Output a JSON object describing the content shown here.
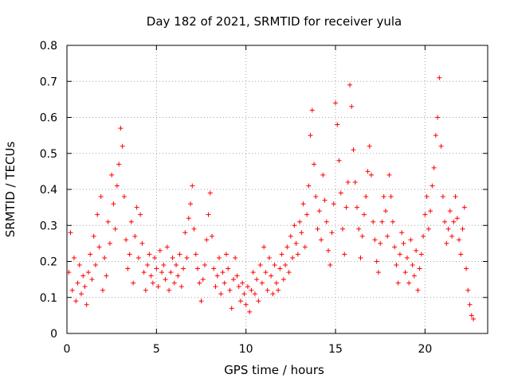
{
  "chart_data": {
    "type": "scatter",
    "title": "Day 182 of 2021, SRMTID for receiver yula",
    "xlabel": "GPS time / hours",
    "ylabel": "SRMTID / TECUs",
    "xlim": [
      0,
      23.5
    ],
    "ylim": [
      0,
      0.8
    ],
    "xticks": [
      0,
      5,
      10,
      15,
      20
    ],
    "xtick_labels": [
      "0",
      "5",
      "10",
      "15",
      "20"
    ],
    "yticks": [
      0,
      0.1,
      0.2,
      0.3,
      0.4,
      0.5,
      0.6,
      0.7,
      0.8
    ],
    "ytick_labels": [
      "0",
      "0.1",
      "0.2",
      "0.3",
      "0.4",
      "0.5",
      "0.6",
      "0.7",
      "0.8"
    ],
    "grid": true,
    "marker": "+",
    "marker_color": "#ff0000",
    "series": [
      {
        "name": "SRMTID",
        "points": [
          [
            0.1,
            0.17
          ],
          [
            0.2,
            0.28
          ],
          [
            0.3,
            0.12
          ],
          [
            0.4,
            0.21
          ],
          [
            0.5,
            0.09
          ],
          [
            0.6,
            0.14
          ],
          [
            0.7,
            0.19
          ],
          [
            0.8,
            0.11
          ],
          [
            0.9,
            0.16
          ],
          [
            1.0,
            0.13
          ],
          [
            1.1,
            0.08
          ],
          [
            1.2,
            0.17
          ],
          [
            1.3,
            0.22
          ],
          [
            1.4,
            0.15
          ],
          [
            1.5,
            0.27
          ],
          [
            1.6,
            0.19
          ],
          [
            1.7,
            0.33
          ],
          [
            1.8,
            0.24
          ],
          [
            1.9,
            0.38
          ],
          [
            2.0,
            0.12
          ],
          [
            2.1,
            0.21
          ],
          [
            2.2,
            0.16
          ],
          [
            2.3,
            0.31
          ],
          [
            2.4,
            0.25
          ],
          [
            2.5,
            0.44
          ],
          [
            2.6,
            0.36
          ],
          [
            2.7,
            0.29
          ],
          [
            2.8,
            0.41
          ],
          [
            2.9,
            0.47
          ],
          [
            3.0,
            0.57
          ],
          [
            3.1,
            0.52
          ],
          [
            3.2,
            0.38
          ],
          [
            3.3,
            0.26
          ],
          [
            3.4,
            0.18
          ],
          [
            3.5,
            0.22
          ],
          [
            3.6,
            0.31
          ],
          [
            3.7,
            0.14
          ],
          [
            3.8,
            0.27
          ],
          [
            3.9,
            0.35
          ],
          [
            4.0,
            0.21
          ],
          [
            4.1,
            0.33
          ],
          [
            4.2,
            0.25
          ],
          [
            4.3,
            0.17
          ],
          [
            4.4,
            0.12
          ],
          [
            4.5,
            0.19
          ],
          [
            4.6,
            0.22
          ],
          [
            4.7,
            0.16
          ],
          [
            4.8,
            0.14
          ],
          [
            4.9,
            0.21
          ],
          [
            5.0,
            0.18
          ],
          [
            5.1,
            0.13
          ],
          [
            5.2,
            0.23
          ],
          [
            5.3,
            0.17
          ],
          [
            5.4,
            0.19
          ],
          [
            5.5,
            0.15
          ],
          [
            5.6,
            0.24
          ],
          [
            5.7,
            0.12
          ],
          [
            5.8,
            0.17
          ],
          [
            5.9,
            0.21
          ],
          [
            6.0,
            0.14
          ],
          [
            6.1,
            0.19
          ],
          [
            6.2,
            0.16
          ],
          [
            6.3,
            0.22
          ],
          [
            6.4,
            0.13
          ],
          [
            6.5,
            0.18
          ],
          [
            6.6,
            0.28
          ],
          [
            6.7,
            0.21
          ],
          [
            6.8,
            0.32
          ],
          [
            6.9,
            0.36
          ],
          [
            7.0,
            0.41
          ],
          [
            7.1,
            0.29
          ],
          [
            7.2,
            0.22
          ],
          [
            7.3,
            0.18
          ],
          [
            7.4,
            0.14
          ],
          [
            7.5,
            0.09
          ],
          [
            7.6,
            0.15
          ],
          [
            7.7,
            0.19
          ],
          [
            7.8,
            0.26
          ],
          [
            7.9,
            0.33
          ],
          [
            8.0,
            0.39
          ],
          [
            8.1,
            0.27
          ],
          [
            8.2,
            0.18
          ],
          [
            8.3,
            0.13
          ],
          [
            8.4,
            0.16
          ],
          [
            8.5,
            0.21
          ],
          [
            8.6,
            0.11
          ],
          [
            8.7,
            0.17
          ],
          [
            8.8,
            0.14
          ],
          [
            8.9,
            0.22
          ],
          [
            9.0,
            0.18
          ],
          [
            9.1,
            0.12
          ],
          [
            9.2,
            0.07
          ],
          [
            9.3,
            0.15
          ],
          [
            9.4,
            0.21
          ],
          [
            9.5,
            0.16
          ],
          [
            9.6,
            0.13
          ],
          [
            9.7,
            0.09
          ],
          [
            9.8,
            0.14
          ],
          [
            9.9,
            0.11
          ],
          [
            10.0,
            0.08
          ],
          [
            10.1,
            0.13
          ],
          [
            10.2,
            0.06
          ],
          [
            10.3,
            0.12
          ],
          [
            10.4,
            0.17
          ],
          [
            10.5,
            0.11
          ],
          [
            10.6,
            0.15
          ],
          [
            10.7,
            0.09
          ],
          [
            10.8,
            0.19
          ],
          [
            10.9,
            0.14
          ],
          [
            11.0,
            0.24
          ],
          [
            11.1,
            0.17
          ],
          [
            11.2,
            0.12
          ],
          [
            11.3,
            0.21
          ],
          [
            11.4,
            0.16
          ],
          [
            11.5,
            0.11
          ],
          [
            11.6,
            0.19
          ],
          [
            11.7,
            0.14
          ],
          [
            11.8,
            0.12
          ],
          [
            11.9,
            0.18
          ],
          [
            12.0,
            0.22
          ],
          [
            12.1,
            0.15
          ],
          [
            12.2,
            0.19
          ],
          [
            12.3,
            0.24
          ],
          [
            12.4,
            0.17
          ],
          [
            12.5,
            0.27
          ],
          [
            12.6,
            0.21
          ],
          [
            12.7,
            0.3
          ],
          [
            12.8,
            0.25
          ],
          [
            12.9,
            0.22
          ],
          [
            13.0,
            0.31
          ],
          [
            13.1,
            0.28
          ],
          [
            13.2,
            0.36
          ],
          [
            13.3,
            0.24
          ],
          [
            13.4,
            0.33
          ],
          [
            13.5,
            0.41
          ],
          [
            13.6,
            0.55
          ],
          [
            13.7,
            0.62
          ],
          [
            13.8,
            0.47
          ],
          [
            13.9,
            0.38
          ],
          [
            14.0,
            0.29
          ],
          [
            14.1,
            0.34
          ],
          [
            14.2,
            0.26
          ],
          [
            14.3,
            0.44
          ],
          [
            14.4,
            0.37
          ],
          [
            14.5,
            0.31
          ],
          [
            14.6,
            0.23
          ],
          [
            14.7,
            0.19
          ],
          [
            14.8,
            0.28
          ],
          [
            14.9,
            0.36
          ],
          [
            15.0,
            0.64
          ],
          [
            15.1,
            0.58
          ],
          [
            15.2,
            0.48
          ],
          [
            15.3,
            0.39
          ],
          [
            15.4,
            0.29
          ],
          [
            15.5,
            0.22
          ],
          [
            15.6,
            0.35
          ],
          [
            15.7,
            0.42
          ],
          [
            15.8,
            0.69
          ],
          [
            15.9,
            0.63
          ],
          [
            16.0,
            0.51
          ],
          [
            16.1,
            0.42
          ],
          [
            16.2,
            0.35
          ],
          [
            16.3,
            0.29
          ],
          [
            16.4,
            0.21
          ],
          [
            16.5,
            0.27
          ],
          [
            16.6,
            0.33
          ],
          [
            16.7,
            0.38
          ],
          [
            16.8,
            0.45
          ],
          [
            16.9,
            0.52
          ],
          [
            17.0,
            0.44
          ],
          [
            17.1,
            0.31
          ],
          [
            17.2,
            0.26
          ],
          [
            17.3,
            0.2
          ],
          [
            17.4,
            0.17
          ],
          [
            17.5,
            0.25
          ],
          [
            17.6,
            0.31
          ],
          [
            17.7,
            0.38
          ],
          [
            17.8,
            0.34
          ],
          [
            17.9,
            0.27
          ],
          [
            18.0,
            0.44
          ],
          [
            18.1,
            0.38
          ],
          [
            18.2,
            0.31
          ],
          [
            18.3,
            0.24
          ],
          [
            18.4,
            0.19
          ],
          [
            18.5,
            0.14
          ],
          [
            18.6,
            0.22
          ],
          [
            18.7,
            0.28
          ],
          [
            18.8,
            0.25
          ],
          [
            18.9,
            0.17
          ],
          [
            19.0,
            0.21
          ],
          [
            19.1,
            0.14
          ],
          [
            19.2,
            0.26
          ],
          [
            19.3,
            0.19
          ],
          [
            19.4,
            0.16
          ],
          [
            19.5,
            0.23
          ],
          [
            19.6,
            0.12
          ],
          [
            19.7,
            0.18
          ],
          [
            19.8,
            0.22
          ],
          [
            19.9,
            0.27
          ],
          [
            20.0,
            0.33
          ],
          [
            20.1,
            0.38
          ],
          [
            20.2,
            0.29
          ],
          [
            20.3,
            0.34
          ],
          [
            20.4,
            0.41
          ],
          [
            20.5,
            0.46
          ],
          [
            20.6,
            0.55
          ],
          [
            20.7,
            0.6
          ],
          [
            20.8,
            0.71
          ],
          [
            20.9,
            0.52
          ],
          [
            21.0,
            0.38
          ],
          [
            21.1,
            0.31
          ],
          [
            21.2,
            0.25
          ],
          [
            21.3,
            0.29
          ],
          [
            21.4,
            0.34
          ],
          [
            21.5,
            0.27
          ],
          [
            21.6,
            0.31
          ],
          [
            21.7,
            0.38
          ],
          [
            21.8,
            0.32
          ],
          [
            21.9,
            0.26
          ],
          [
            22.0,
            0.22
          ],
          [
            22.1,
            0.29
          ],
          [
            22.2,
            0.35
          ],
          [
            22.3,
            0.18
          ],
          [
            22.4,
            0.12
          ],
          [
            22.5,
            0.08
          ],
          [
            22.6,
            0.05
          ],
          [
            22.7,
            0.04
          ]
        ]
      }
    ]
  }
}
